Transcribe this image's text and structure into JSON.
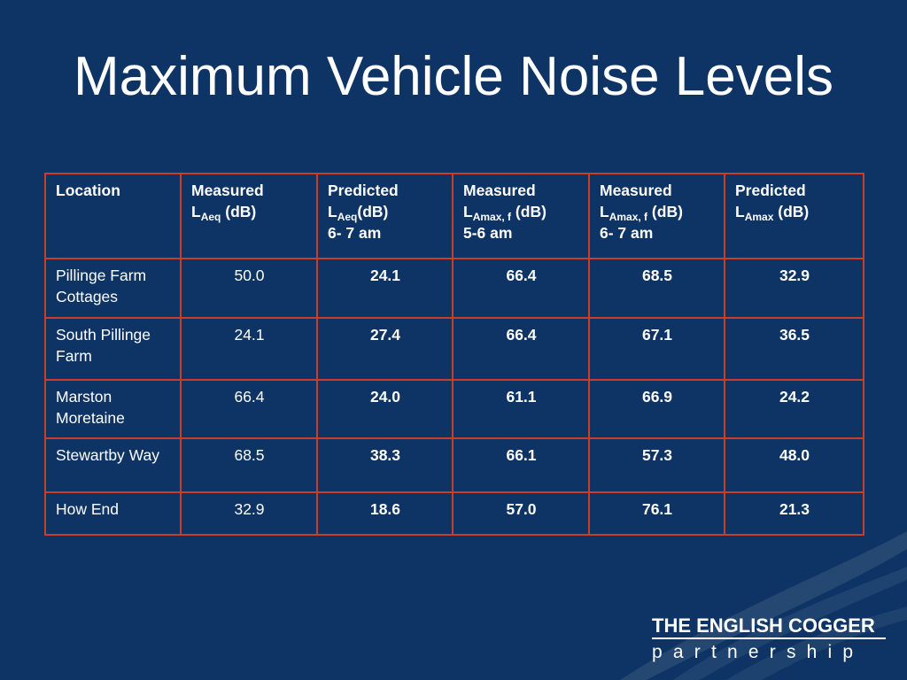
{
  "slide": {
    "title": "Maximum Vehicle Noise Levels"
  },
  "table": {
    "headers": [
      {
        "line1": "Location",
        "base": "",
        "sub": "",
        "tail": "",
        "line3": ""
      },
      {
        "line1": "Measured",
        "base": "L",
        "sub": "Aeq",
        "tail": " (dB)",
        "line3": ""
      },
      {
        "line1": "Predicted",
        "base": "L",
        "sub": "Aeq",
        "tail": "(dB)",
        "line3": "6- 7 am"
      },
      {
        "line1": "Measured",
        "base": "L",
        "sub": "Amax, f",
        "tail": " (dB)",
        "line3": "5-6 am"
      },
      {
        "line1": "Measured",
        "base": "L",
        "sub": "Amax, f",
        "tail": " (dB)",
        "line3": "6- 7 am"
      },
      {
        "line1": "Predicted",
        "base": "L",
        "sub": "Amax",
        "tail": " (dB)",
        "line3": ""
      }
    ],
    "rows": [
      {
        "location": "Pillinge Farm Cottages",
        "values": [
          "50.0",
          "24.1",
          "66.4",
          "68.5",
          "32.9"
        ]
      },
      {
        "location": "South Pillinge Farm",
        "values": [
          "24.1",
          "27.4",
          "66.4",
          "67.1",
          "36.5"
        ]
      },
      {
        "location": "Marston Moretaine",
        "values": [
          "66.4",
          "24.0",
          "61.1",
          "66.9",
          "24.2"
        ]
      },
      {
        "location": "Stewartby Way",
        "values": [
          "68.5",
          "38.3",
          "66.1",
          "57.3",
          "48.0"
        ]
      },
      {
        "location": "How End",
        "values": [
          "32.9",
          "18.6",
          "57.0",
          "76.1",
          "21.3"
        ]
      }
    ],
    "border_color": "#cc3d27"
  },
  "logo": {
    "line1": "THE ENGLISH COGGER",
    "line2": "partnership"
  },
  "colors": {
    "background": "#0d3464",
    "text": "#ffffff"
  }
}
